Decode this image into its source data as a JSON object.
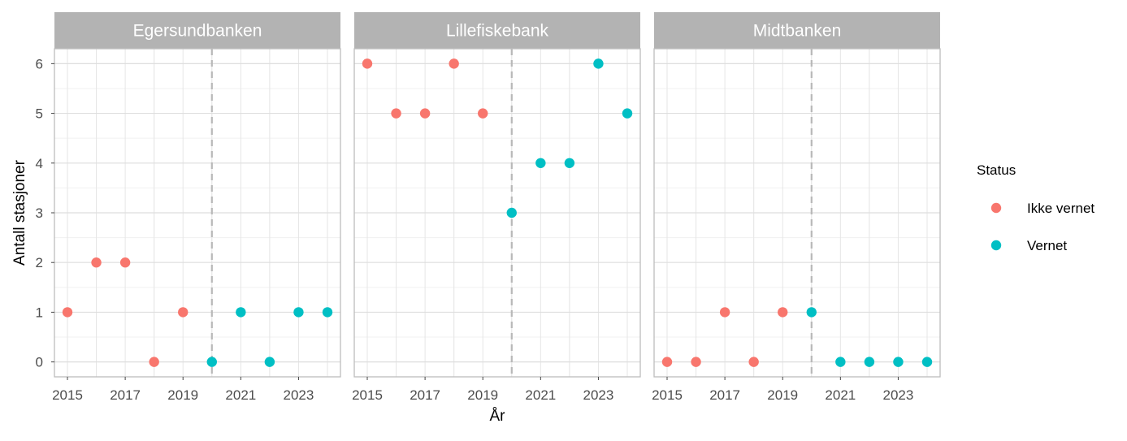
{
  "chart_data": {
    "type": "scatter",
    "xlabel": "År",
    "ylabel": "Antall stasjoner",
    "x_ticks": [
      2015,
      2017,
      2019,
      2021,
      2023
    ],
    "y_ticks": [
      0,
      1,
      2,
      3,
      4,
      5,
      6
    ],
    "xlim": [
      2014.55,
      2024.45
    ],
    "ylim": [
      -0.3,
      6.3
    ],
    "reference_line_x": 2020,
    "grid": true,
    "legend": {
      "title": "Status",
      "placement": "right",
      "entries": [
        {
          "name": "Ikke vernet",
          "color": "#F8766D"
        },
        {
          "name": "Vernet",
          "color": "#00BFC4"
        }
      ]
    },
    "panels": [
      {
        "title": "Egersundbanken",
        "series": [
          {
            "name": "Ikke vernet",
            "points": [
              [
                2015,
                1
              ],
              [
                2016,
                2
              ],
              [
                2017,
                2
              ],
              [
                2018,
                0
              ],
              [
                2019,
                1
              ]
            ]
          },
          {
            "name": "Vernet",
            "points": [
              [
                2020,
                0
              ],
              [
                2021,
                1
              ],
              [
                2022,
                0
              ],
              [
                2023,
                1
              ],
              [
                2024,
                1
              ]
            ]
          }
        ]
      },
      {
        "title": "Lillefiskebank",
        "series": [
          {
            "name": "Ikke vernet",
            "points": [
              [
                2015,
                6
              ],
              [
                2016,
                5
              ],
              [
                2017,
                5
              ],
              [
                2018,
                6
              ],
              [
                2019,
                5
              ]
            ]
          },
          {
            "name": "Vernet",
            "points": [
              [
                2020,
                3
              ],
              [
                2021,
                4
              ],
              [
                2022,
                4
              ],
              [
                2023,
                6
              ],
              [
                2024,
                5
              ]
            ]
          }
        ]
      },
      {
        "title": "Midtbanken",
        "series": [
          {
            "name": "Ikke vernet",
            "points": [
              [
                2015,
                0
              ],
              [
                2016,
                0
              ],
              [
                2017,
                1
              ],
              [
                2018,
                0
              ],
              [
                2019,
                1
              ]
            ]
          },
          {
            "name": "Vernet",
            "points": [
              [
                2020,
                1
              ],
              [
                2021,
                0
              ],
              [
                2022,
                0
              ],
              [
                2023,
                0
              ],
              [
                2024,
                0
              ]
            ]
          }
        ]
      }
    ]
  }
}
